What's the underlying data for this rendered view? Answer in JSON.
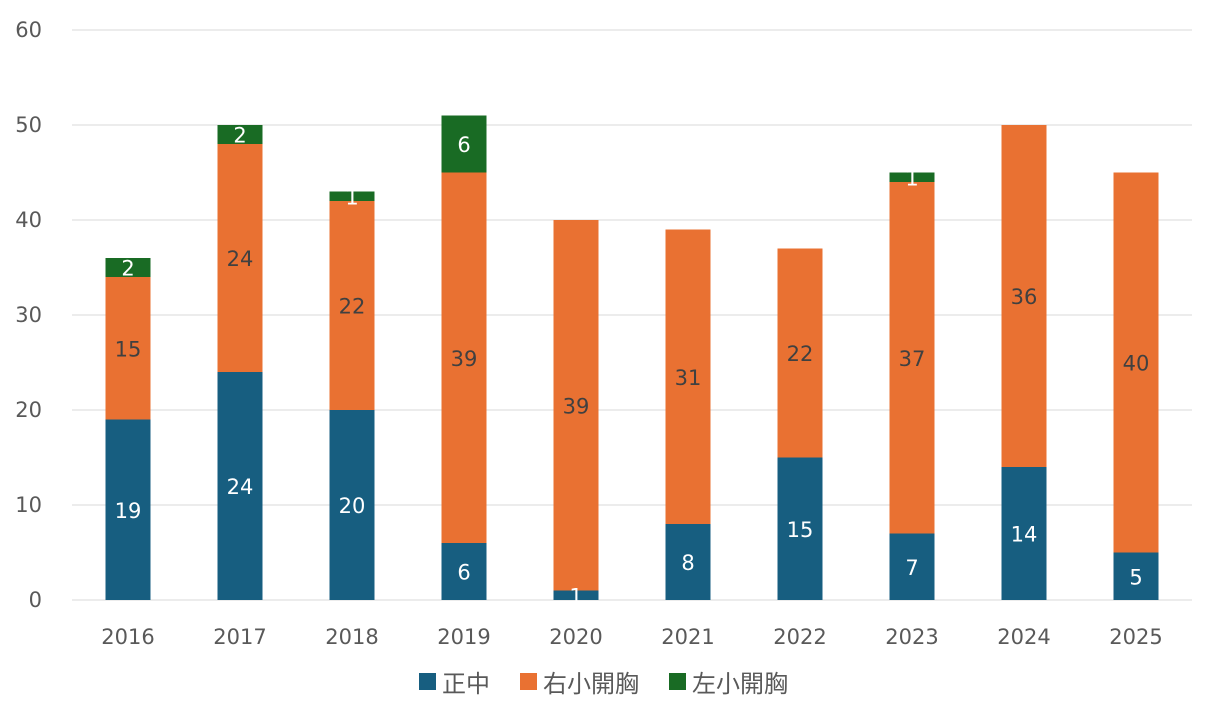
{
  "chart_data": {
    "type": "bar",
    "stacked": true,
    "title": "",
    "xlabel": "",
    "ylabel": "",
    "categories": [
      "2016",
      "2017",
      "2018",
      "2019",
      "2020",
      "2021",
      "2022",
      "2023",
      "2024",
      "2025"
    ],
    "series": [
      {
        "name": "正中",
        "color": "#175E80",
        "label_color": "#FFFFFF",
        "values": [
          19,
          24,
          20,
          6,
          1,
          8,
          15,
          7,
          14,
          5
        ]
      },
      {
        "name": "右小開胸",
        "color": "#E97132",
        "label_color": "#404040",
        "values": [
          15,
          24,
          22,
          39,
          39,
          31,
          22,
          37,
          36,
          40
        ]
      },
      {
        "name": "左小開胸",
        "color": "#196B24",
        "label_color": "#FFFFFF",
        "values": [
          2,
          2,
          1,
          6,
          0,
          0,
          0,
          1,
          0,
          0
        ]
      }
    ],
    "ylim": [
      0,
      60
    ],
    "yticks": [
      0,
      10,
      20,
      30,
      40,
      50,
      60
    ],
    "grid": true,
    "data_labels": true,
    "legend": "bottom"
  }
}
